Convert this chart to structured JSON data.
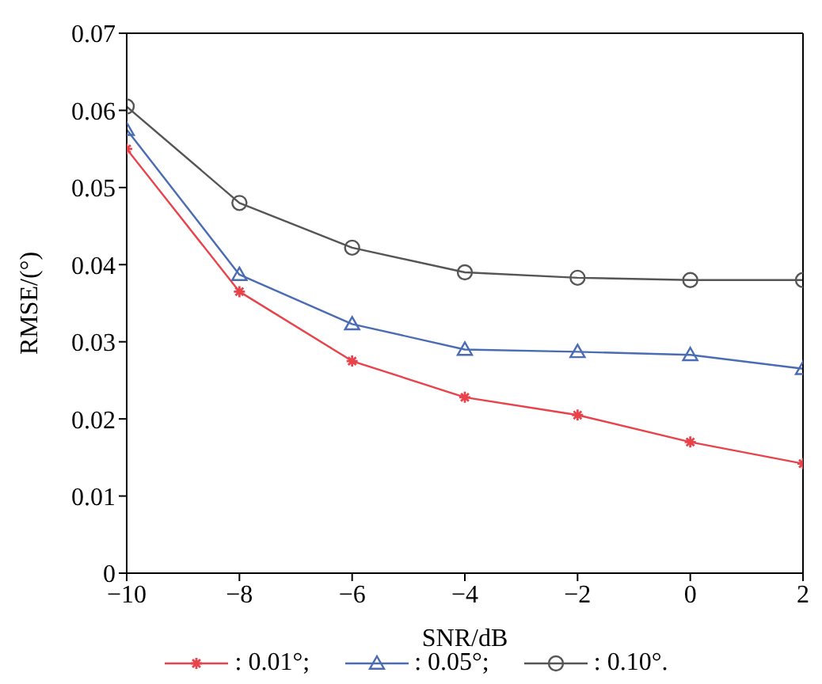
{
  "chart_data": {
    "type": "line",
    "xlabel": "SNR/dB",
    "ylabel": "RMSE/(°)",
    "x": [
      -10,
      -8,
      -6,
      -4,
      -2,
      0,
      2
    ],
    "series": [
      {
        "name": ": 0.01°;",
        "color": "#e8424a",
        "marker": "cross",
        "values": [
          0.055,
          0.0365,
          0.0275,
          0.0228,
          0.0205,
          0.017,
          0.0142
        ]
      },
      {
        "name": ": 0.05°;",
        "color": "#4a6cb3",
        "marker": "triangle",
        "values": [
          0.0575,
          0.0387,
          0.0323,
          0.029,
          0.0287,
          0.0283,
          0.0265
        ]
      },
      {
        "name": ": 0.10°.",
        "color": "#555555",
        "marker": "circle",
        "values": [
          0.0605,
          0.048,
          0.0422,
          0.039,
          0.0383,
          0.038,
          0.038
        ]
      }
    ],
    "xlim": [
      -10,
      2
    ],
    "xticks": [
      {
        "value": -10,
        "label": "−10"
      },
      {
        "value": -8,
        "label": "−8"
      },
      {
        "value": -6,
        "label": "−6"
      },
      {
        "value": -4,
        "label": "−4"
      },
      {
        "value": -2,
        "label": "−2"
      },
      0,
      2
    ],
    "ylim": [
      0,
      0.07
    ],
    "yticks": [
      0,
      0.01,
      0.02,
      0.03,
      0.04,
      0.05,
      0.06,
      0.07
    ],
    "grid": false,
    "legend": "bottom",
    "line_style": "solid"
  }
}
